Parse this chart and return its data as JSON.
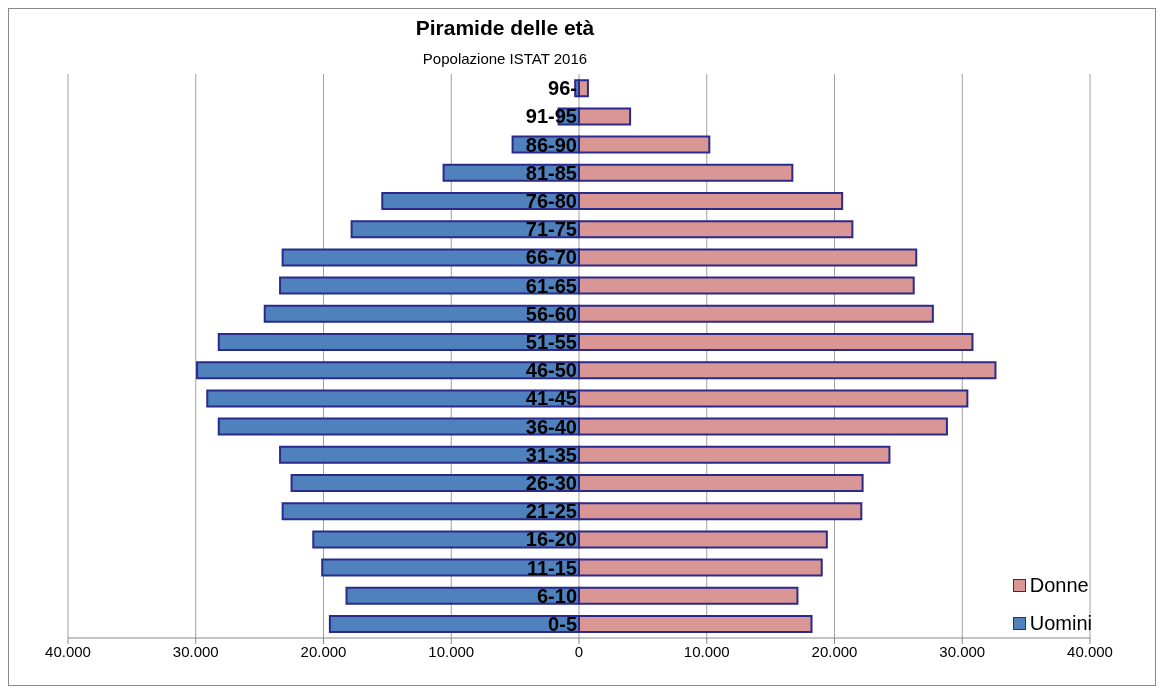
{
  "chart_data": {
    "type": "bar",
    "orientation": "horizontal",
    "stacked": true,
    "title": "Piramide delle età",
    "subtitle": "Popolazione ISTAT 2016",
    "categories": [
      "96-",
      "91-95",
      "86-90",
      "81-85",
      "76-80",
      "71-75",
      "66-70",
      "61-65",
      "56-60",
      "51-55",
      "46-50",
      "41-45",
      "36-40",
      "31-35",
      "26-30",
      "21-25",
      "16-20",
      "11-15",
      "6-10",
      "0-5"
    ],
    "series": [
      {
        "name": "Uomini",
        "color": "#4f81bd",
        "values": [
          -300,
          -1600,
          -5200,
          -10600,
          -15400,
          -17800,
          -23200,
          -23400,
          -24600,
          -28200,
          -29900,
          -29100,
          -28200,
          -23400,
          -22500,
          -23200,
          -20800,
          -20100,
          -18200,
          -19500
        ]
      },
      {
        "name": "Donne",
        "color": "#d99694",
        "values": [
          700,
          4000,
          10200,
          16700,
          20600,
          21400,
          26400,
          26200,
          27700,
          30800,
          32600,
          30400,
          28800,
          24300,
          22200,
          22100,
          19400,
          19000,
          17100,
          18200
        ]
      }
    ],
    "xlim": [
      -40000,
      40000
    ],
    "xticks": [
      {
        "value": -40000,
        "label": "40.000"
      },
      {
        "value": -30000,
        "label": "30.000"
      },
      {
        "value": -20000,
        "label": "20.000"
      },
      {
        "value": -10000,
        "label": "10.000"
      },
      0,
      {
        "value": 10000,
        "label": "10.000"
      },
      {
        "value": 20000,
        "label": "20.000"
      },
      {
        "value": 30000,
        "label": "30.000"
      },
      {
        "value": 40000,
        "label": "40.000"
      }
    ],
    "grid": "x",
    "legend": "bottom right"
  }
}
